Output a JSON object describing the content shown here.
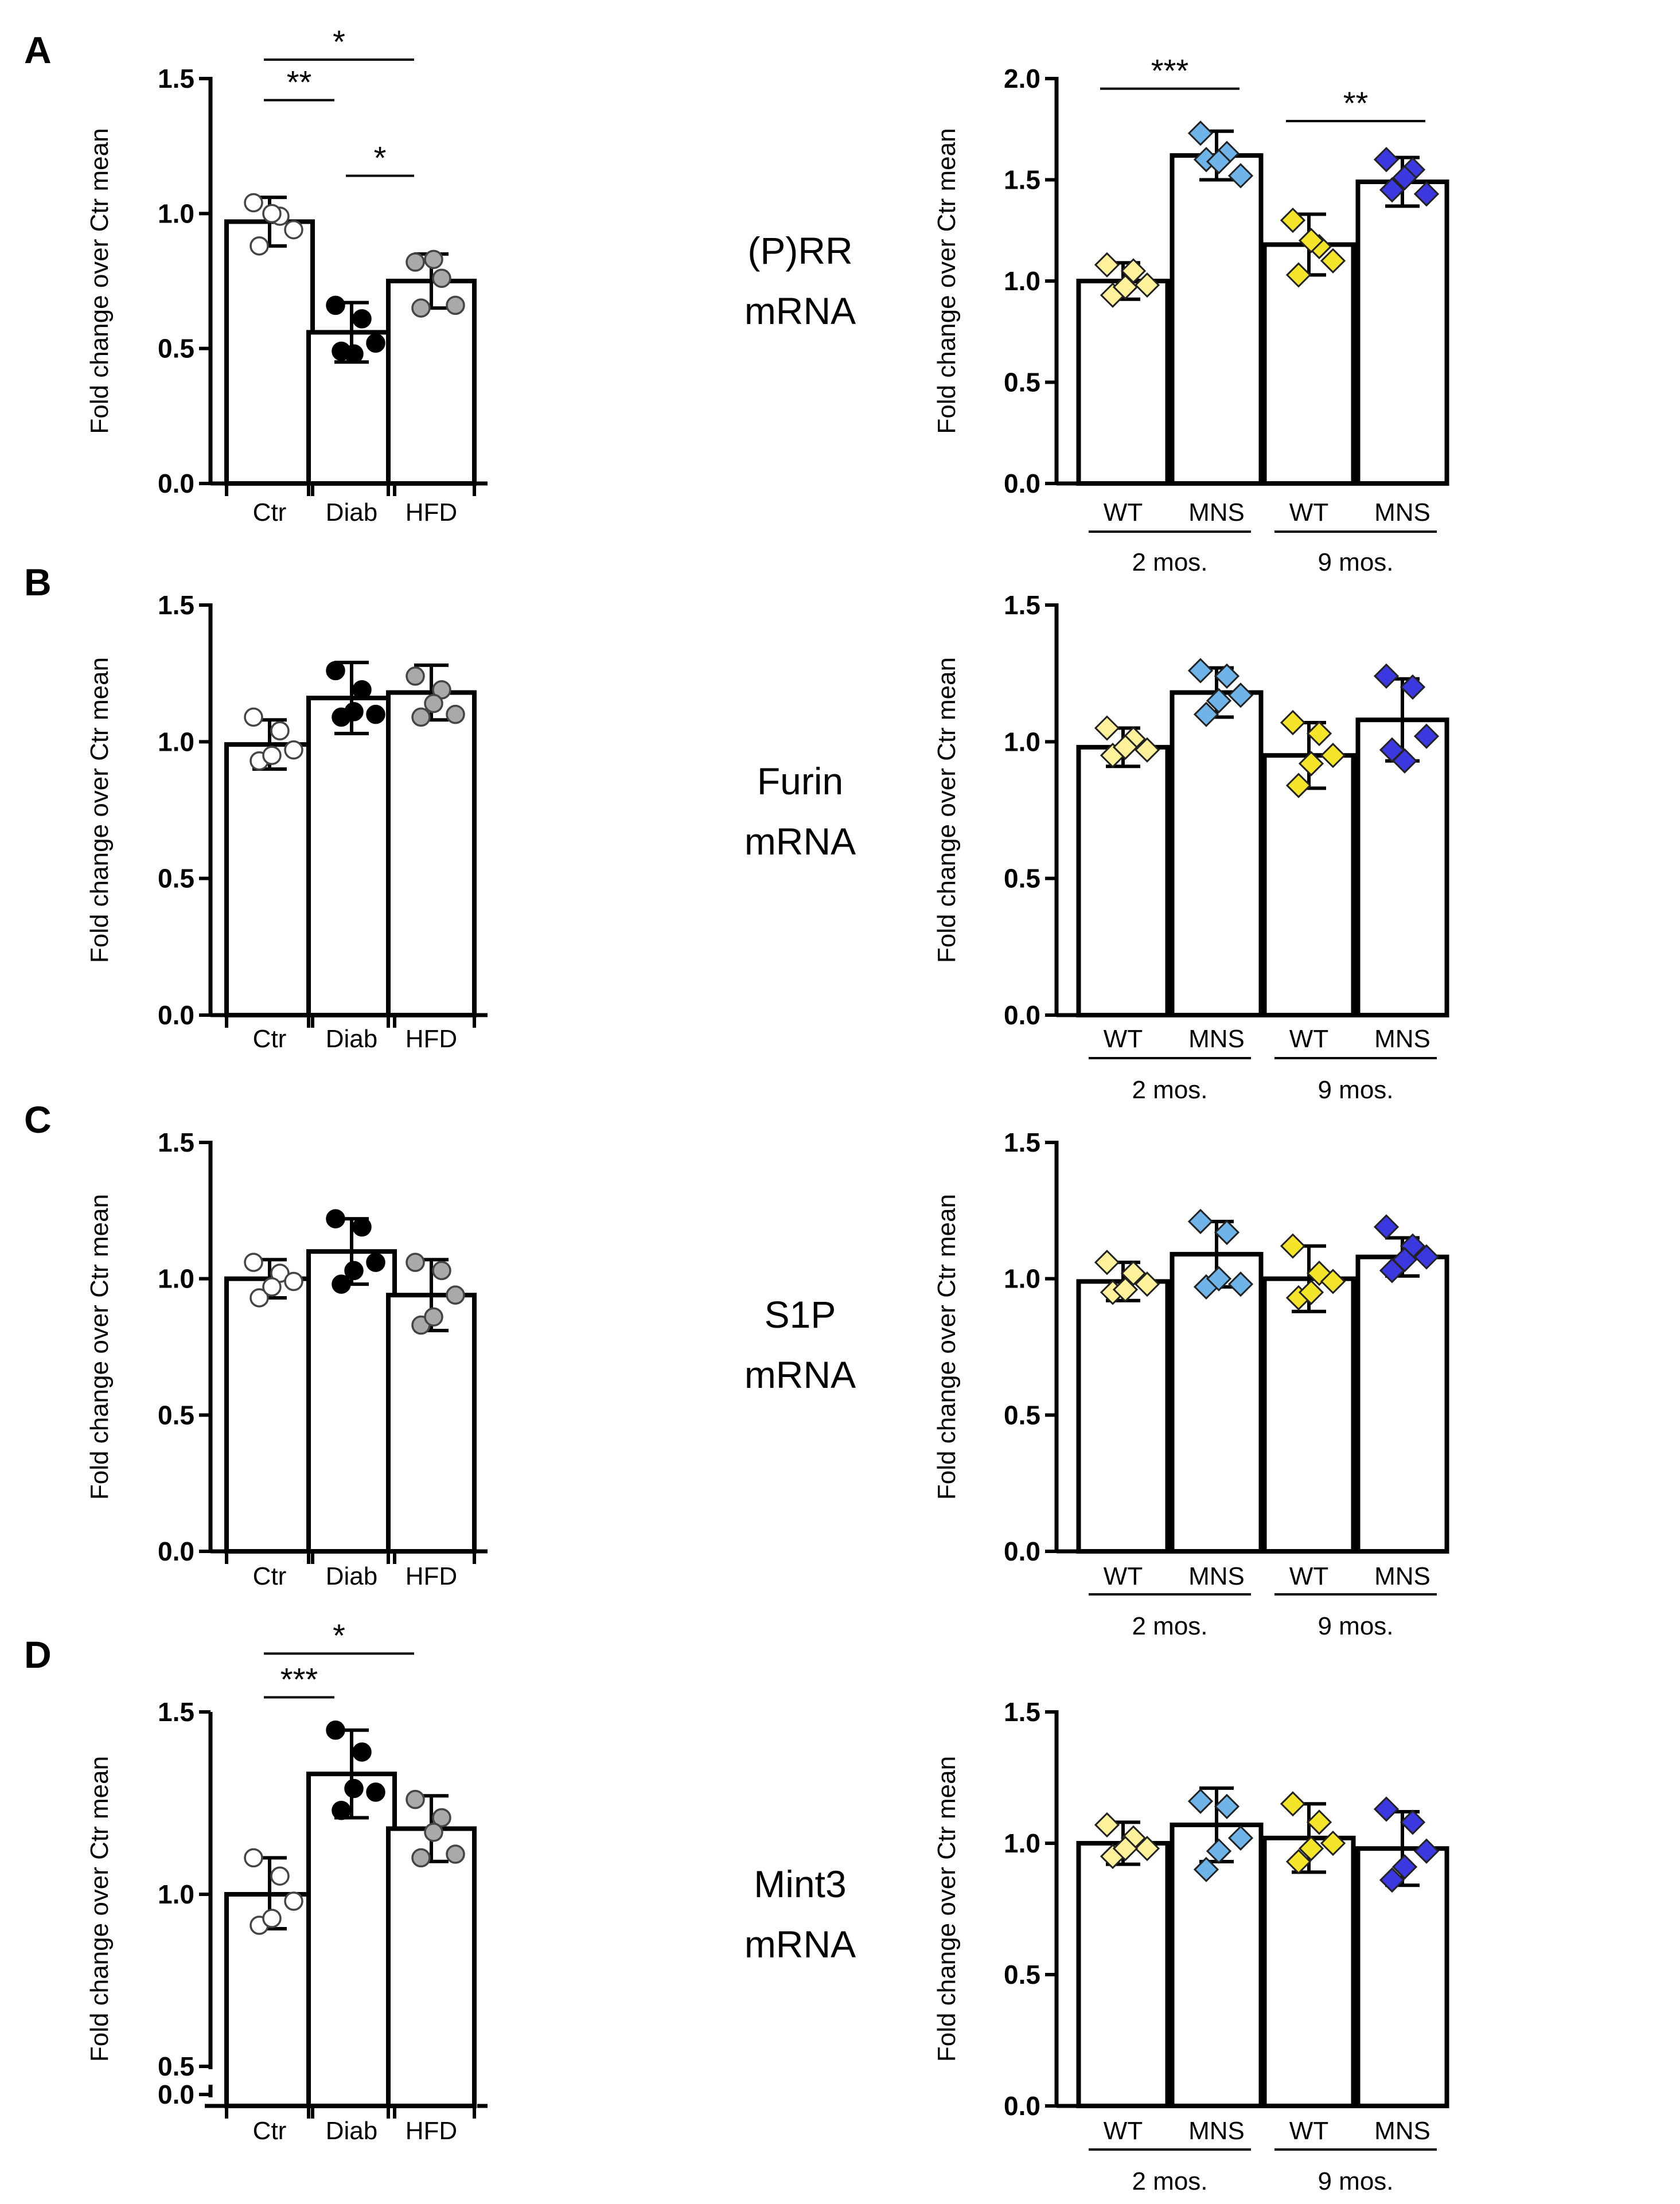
{
  "figure": {
    "panels": [
      {
        "label": "A",
        "gene": [
          "(P)RR",
          "mRNA"
        ]
      },
      {
        "label": "B",
        "gene": [
          "Furin",
          "mRNA"
        ]
      },
      {
        "label": "C",
        "gene": [
          "S1P",
          "mRNA"
        ]
      },
      {
        "label": "D",
        "gene": [
          "Mint3",
          "mRNA"
        ]
      }
    ]
  },
  "colors": {
    "Ctr": "#ffffff",
    "Diab": "#000000",
    "HFD": "#a9a9a9",
    "WT2": "#fff29a",
    "MNS2": "#6fb4e8",
    "WT9": "#f5e52a",
    "MNS9": "#3b38df"
  },
  "chart_data": [
    {
      "id": "A-left",
      "type": "bar",
      "panel": "A",
      "title": "",
      "xlabel": "",
      "ylabel": "Fold change over Ctr mean",
      "ylim": [
        0,
        1.5
      ],
      "yticks": [
        "0.0",
        "0.5",
        "1.0",
        "1.5"
      ],
      "categories": [
        "Ctr",
        "Diab",
        "HFD"
      ],
      "values": [
        0.97,
        0.56,
        0.75
      ],
      "sd": [
        0.09,
        0.11,
        0.1
      ],
      "points": [
        [
          1.04,
          0.99,
          0.94,
          0.88,
          1.0
        ],
        [
          0.66,
          0.61,
          0.52,
          0.49,
          0.48
        ],
        [
          0.82,
          0.76,
          0.66,
          0.65,
          0.83
        ]
      ],
      "marker": "circle",
      "colors": [
        "Ctr",
        "Diab",
        "HFD"
      ],
      "significance": [
        {
          "from": 0,
          "to": 1,
          "label": "**",
          "y": 1.42
        },
        {
          "from": 0,
          "to": 2,
          "label": "*",
          "y": 1.57
        },
        {
          "from": 1,
          "to": 2,
          "label": "*",
          "y": 1.14
        }
      ]
    },
    {
      "id": "A-right",
      "type": "bar",
      "panel": "A",
      "title": "",
      "xlabel": "",
      "ylabel": "Fold change over Ctr mean",
      "ylim": [
        0,
        2.0
      ],
      "yticks": [
        "0.0",
        "0.5",
        "1.0",
        "1.5",
        "2.0"
      ],
      "categories": [
        "WT",
        "MNS",
        "WT",
        "MNS"
      ],
      "groups": [
        "2 mos.",
        "9 mos."
      ],
      "values": [
        1.0,
        1.62,
        1.18,
        1.49
      ],
      "sd": [
        0.09,
        0.12,
        0.15,
        0.12
      ],
      "points": [
        [
          1.08,
          1.05,
          0.98,
          0.93,
          0.97
        ],
        [
          1.73,
          1.63,
          1.52,
          1.6,
          1.59
        ],
        [
          1.3,
          1.17,
          1.1,
          1.03,
          1.2
        ],
        [
          1.6,
          1.55,
          1.43,
          1.45,
          1.51
        ]
      ],
      "marker": "diamond",
      "colors": [
        "WT2",
        "MNS2",
        "WT9",
        "MNS9"
      ],
      "significance": [
        {
          "from": 0,
          "to": 1,
          "label": "***",
          "y": 1.95
        },
        {
          "from": 2,
          "to": 3,
          "label": "**",
          "y": 1.79
        }
      ]
    },
    {
      "id": "B-left",
      "type": "bar",
      "panel": "B",
      "title": "",
      "xlabel": "",
      "ylabel": "Fold change over Ctr mean",
      "ylim": [
        0,
        1.5
      ],
      "yticks": [
        "0.0",
        "0.5",
        "1.0",
        "1.5"
      ],
      "categories": [
        "Ctr",
        "Diab",
        "HFD"
      ],
      "values": [
        0.99,
        1.16,
        1.18
      ],
      "sd": [
        0.09,
        0.13,
        0.1
      ],
      "points": [
        [
          1.09,
          1.04,
          0.97,
          0.93,
          0.95
        ],
        [
          1.26,
          1.19,
          1.1,
          1.09,
          1.11
        ],
        [
          1.24,
          1.19,
          1.1,
          1.09,
          1.14
        ]
      ],
      "marker": "circle",
      "colors": [
        "Ctr",
        "Diab",
        "HFD"
      ],
      "significance": []
    },
    {
      "id": "B-right",
      "type": "bar",
      "panel": "B",
      "title": "",
      "xlabel": "",
      "ylabel": "Fold change over Ctr mean",
      "ylim": [
        0,
        1.5
      ],
      "yticks": [
        "0.0",
        "0.5",
        "1.0",
        "1.5"
      ],
      "categories": [
        "WT",
        "MNS",
        "WT",
        "MNS"
      ],
      "groups": [
        "2 mos.",
        "9 mos."
      ],
      "values": [
        0.98,
        1.18,
        0.95,
        1.08
      ],
      "sd": [
        0.07,
        0.09,
        0.12,
        0.15
      ],
      "points": [
        [
          1.05,
          1.01,
          0.97,
          0.95,
          0.98
        ],
        [
          1.26,
          1.24,
          1.17,
          1.1,
          1.15
        ],
        [
          1.07,
          1.03,
          0.95,
          0.84,
          0.92
        ],
        [
          1.24,
          1.2,
          1.02,
          0.97,
          0.93
        ]
      ],
      "marker": "diamond",
      "colors": [
        "WT2",
        "MNS2",
        "WT9",
        "MNS9"
      ],
      "significance": []
    },
    {
      "id": "C-left",
      "type": "bar",
      "panel": "C",
      "title": "",
      "xlabel": "",
      "ylabel": "Fold change over Ctr mean",
      "ylim": [
        0,
        1.5
      ],
      "yticks": [
        "0.0",
        "0.5",
        "1.0",
        "1.5"
      ],
      "categories": [
        "Ctr",
        "Diab",
        "HFD"
      ],
      "values": [
        1.0,
        1.1,
        0.94
      ],
      "sd": [
        0.07,
        0.12,
        0.13
      ],
      "points": [
        [
          1.06,
          1.02,
          0.99,
          0.93,
          0.97
        ],
        [
          1.22,
          1.19,
          1.06,
          0.98,
          1.03
        ],
        [
          1.06,
          1.03,
          0.94,
          0.83,
          0.86
        ]
      ],
      "marker": "circle",
      "colors": [
        "Ctr",
        "Diab",
        "HFD"
      ],
      "significance": []
    },
    {
      "id": "C-right",
      "type": "bar",
      "panel": "C",
      "title": "",
      "xlabel": "",
      "ylabel": "Fold change over Ctr mean",
      "ylim": [
        0,
        1.5
      ],
      "yticks": [
        "0.0",
        "0.5",
        "1.0",
        "1.5"
      ],
      "categories": [
        "WT",
        "MNS",
        "WT",
        "MNS"
      ],
      "groups": [
        "2 mos.",
        "9 mos."
      ],
      "values": [
        0.99,
        1.09,
        1.0,
        1.08
      ],
      "sd": [
        0.07,
        0.12,
        0.12,
        0.07
      ],
      "points": [
        [
          1.06,
          1.02,
          0.98,
          0.95,
          0.96
        ],
        [
          1.21,
          1.17,
          0.98,
          0.97,
          1.0
        ],
        [
          1.12,
          1.02,
          0.99,
          0.93,
          0.95
        ],
        [
          1.19,
          1.12,
          1.08,
          1.03,
          1.07
        ]
      ],
      "marker": "diamond",
      "colors": [
        "WT2",
        "MNS2",
        "WT9",
        "MNS9"
      ],
      "significance": []
    },
    {
      "id": "D-left",
      "type": "bar",
      "panel": "D",
      "title": "",
      "xlabel": "",
      "ylabel": "Fold change over Ctr mean",
      "ylim": [
        0,
        1.5
      ],
      "axis_break": true,
      "yticks": [
        "0.0",
        "0.5",
        "1.0",
        "1.5"
      ],
      "categories": [
        "Ctr",
        "Diab",
        "HFD"
      ],
      "values": [
        1.0,
        1.33,
        1.18
      ],
      "sd": [
        0.1,
        0.12,
        0.09
      ],
      "points": [
        [
          1.1,
          1.05,
          0.98,
          0.91,
          0.93
        ],
        [
          1.45,
          1.39,
          1.28,
          1.23,
          1.29
        ],
        [
          1.26,
          1.21,
          1.11,
          1.1,
          1.17
        ]
      ],
      "marker": "circle",
      "colors": [
        "Ctr",
        "Diab",
        "HFD"
      ],
      "significance": [
        {
          "from": 0,
          "to": 1,
          "label": "***",
          "y": 1.54
        },
        {
          "from": 0,
          "to": 2,
          "label": "*",
          "y": 1.66
        }
      ]
    },
    {
      "id": "D-right",
      "type": "bar",
      "panel": "D",
      "title": "",
      "xlabel": "",
      "ylabel": "Fold change over Ctr mean",
      "ylim": [
        0,
        1.5
      ],
      "yticks": [
        "0.0",
        "0.5",
        "1.0",
        "1.5"
      ],
      "categories": [
        "WT",
        "MNS",
        "WT",
        "MNS"
      ],
      "groups": [
        "2 mos.",
        "9 mos."
      ],
      "values": [
        1.0,
        1.07,
        1.02,
        0.98
      ],
      "sd": [
        0.08,
        0.14,
        0.13,
        0.14
      ],
      "points": [
        [
          1.07,
          1.02,
          0.98,
          0.95,
          0.98
        ],
        [
          1.16,
          1.14,
          1.02,
          0.9,
          0.97
        ],
        [
          1.15,
          1.08,
          1.0,
          0.93,
          0.98
        ],
        [
          1.13,
          1.08,
          0.97,
          0.86,
          0.91
        ]
      ],
      "marker": "diamond",
      "colors": [
        "WT2",
        "MNS2",
        "WT9",
        "MNS9"
      ],
      "significance": []
    }
  ]
}
